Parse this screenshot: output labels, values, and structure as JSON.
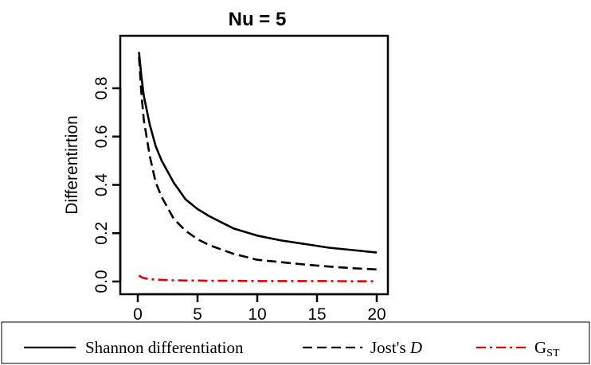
{
  "chart_data": {
    "type": "line",
    "title": "Nu = 5",
    "xlabel": "",
    "ylabel": "Differentirtion",
    "xlim": [
      0,
      20
    ],
    "ylim": [
      0,
      0.95
    ],
    "x_ticks": [
      "0",
      "5",
      "10",
      "15",
      "20"
    ],
    "y_ticks": [
      "0.0",
      "0.2",
      "0.4",
      "0.6",
      "0.8"
    ],
    "grid": false,
    "legend_position": "bottom",
    "x": [
      0.1,
      0.3,
      0.5,
      1,
      1.5,
      2,
      3,
      4,
      5,
      6,
      8,
      10,
      12,
      14,
      16,
      18,
      20
    ],
    "series": [
      {
        "name": "Shannon differentiation",
        "color": "#000000",
        "dash": "solid",
        "values": [
          0.95,
          0.85,
          0.77,
          0.65,
          0.56,
          0.5,
          0.41,
          0.34,
          0.3,
          0.27,
          0.22,
          0.19,
          0.17,
          0.155,
          0.14,
          0.13,
          0.12
        ]
      },
      {
        "name": "Jost's ",
        "name_italic": "D",
        "color": "#000000",
        "dash": "dashed",
        "values": [
          0.93,
          0.78,
          0.67,
          0.52,
          0.41,
          0.35,
          0.26,
          0.21,
          0.175,
          0.15,
          0.115,
          0.09,
          0.08,
          0.07,
          0.062,
          0.055,
          0.05
        ]
      },
      {
        "name": "G",
        "name_sub": "ST",
        "color": "#e00000",
        "dash": "dashdot",
        "values": [
          0.025,
          0.018,
          0.014,
          0.01,
          0.008,
          0.007,
          0.005,
          0.004,
          0.004,
          0.003,
          0.003,
          0.002,
          0.002,
          0.002,
          0.002,
          0.001,
          0.001
        ]
      }
    ]
  }
}
